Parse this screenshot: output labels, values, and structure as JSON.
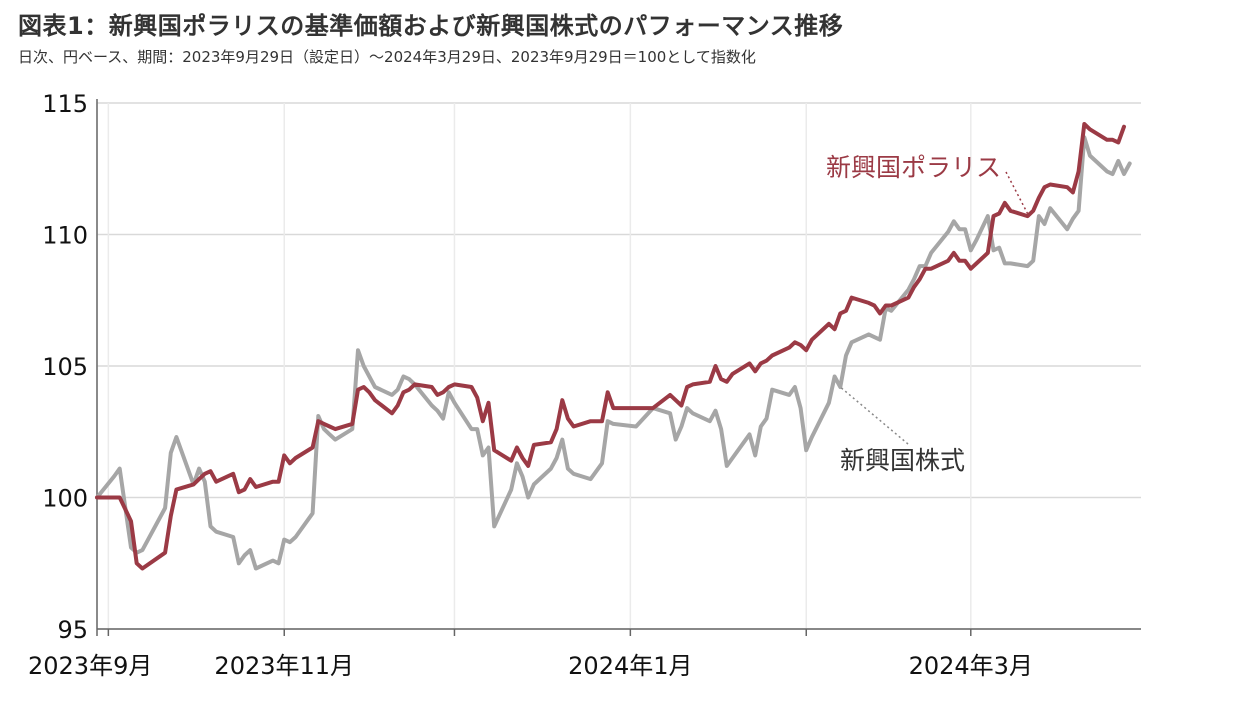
{
  "title": "図表1：新興国ポラリスの基準価額および新興国株式のパフォーマンス推移",
  "subtitle": "日次、円ベース、期間：2023年9月29日（設定日）～2024年3月29日、2023年9月29日＝100として指数化",
  "colors": {
    "polaris": "#9b3a45",
    "stocks": "#a6a6a6",
    "grid": "#d9d9d9",
    "axis": "#666666"
  },
  "chart_data": {
    "type": "line",
    "ylim": [
      95,
      115
    ],
    "y_ticks": [
      95,
      100,
      105,
      110,
      115
    ],
    "xlim": [
      "2023-09-29",
      "2024-03-31"
    ],
    "x_ticks": [
      {
        "date": "2023-09-29",
        "label": "2023年9月"
      },
      {
        "date": "2023-11-01",
        "label": "2023年11月"
      },
      {
        "date": "2024-01-01",
        "label": "2024年1月"
      },
      {
        "date": "2024-03-01",
        "label": "2024年3月"
      }
    ],
    "x_minor_ticks": [
      "2023-10-01",
      "2023-12-01",
      "2024-02-01"
    ],
    "grid": true,
    "series": [
      {
        "name": "新興国ポラリス",
        "key": "polaris",
        "points": [
          [
            "2023-09-29",
            100.0
          ],
          [
            "2023-10-02",
            100.0
          ],
          [
            "2023-10-03",
            100.0
          ],
          [
            "2023-10-05",
            99.1
          ],
          [
            "2023-10-06",
            97.5
          ],
          [
            "2023-10-07",
            97.3
          ],
          [
            "2023-10-11",
            97.9
          ],
          [
            "2023-10-12",
            99.3
          ],
          [
            "2023-10-13",
            100.3
          ],
          [
            "2023-10-16",
            100.5
          ],
          [
            "2023-10-17",
            100.7
          ],
          [
            "2023-10-18",
            100.9
          ],
          [
            "2023-10-19",
            101.0
          ],
          [
            "2023-10-20",
            100.6
          ],
          [
            "2023-10-23",
            100.9
          ],
          [
            "2023-10-24",
            100.2
          ],
          [
            "2023-10-25",
            100.3
          ],
          [
            "2023-10-26",
            100.7
          ],
          [
            "2023-10-27",
            100.4
          ],
          [
            "2023-10-30",
            100.6
          ],
          [
            "2023-10-31",
            100.6
          ],
          [
            "2023-11-01",
            101.6
          ],
          [
            "2023-11-02",
            101.3
          ],
          [
            "2023-11-03",
            101.5
          ],
          [
            "2023-11-06",
            101.9
          ],
          [
            "2023-11-07",
            102.9
          ],
          [
            "2023-11-08",
            102.8
          ],
          [
            "2023-11-09",
            102.7
          ],
          [
            "2023-11-10",
            102.6
          ],
          [
            "2023-11-13",
            102.8
          ],
          [
            "2023-11-14",
            104.1
          ],
          [
            "2023-11-15",
            104.2
          ],
          [
            "2023-11-16",
            104.0
          ],
          [
            "2023-11-17",
            103.7
          ],
          [
            "2023-11-20",
            103.2
          ],
          [
            "2023-11-21",
            103.5
          ],
          [
            "2023-11-22",
            104.0
          ],
          [
            "2023-11-23",
            104.1
          ],
          [
            "2023-11-24",
            104.3
          ],
          [
            "2023-11-27",
            104.2
          ],
          [
            "2023-11-28",
            103.9
          ],
          [
            "2023-11-29",
            104.0
          ],
          [
            "2023-11-30",
            104.2
          ],
          [
            "2023-12-01",
            104.3
          ],
          [
            "2023-12-04",
            104.2
          ],
          [
            "2023-12-05",
            103.8
          ],
          [
            "2023-12-06",
            102.9
          ],
          [
            "2023-12-07",
            103.6
          ],
          [
            "2023-12-08",
            101.8
          ],
          [
            "2023-12-11",
            101.4
          ],
          [
            "2023-12-12",
            101.9
          ],
          [
            "2023-12-13",
            101.5
          ],
          [
            "2023-12-14",
            101.2
          ],
          [
            "2023-12-15",
            102.0
          ],
          [
            "2023-12-18",
            102.1
          ],
          [
            "2023-12-19",
            102.6
          ],
          [
            "2023-12-20",
            103.7
          ],
          [
            "2023-12-21",
            103.0
          ],
          [
            "2023-12-22",
            102.7
          ],
          [
            "2023-12-25",
            102.9
          ],
          [
            "2023-12-27",
            102.9
          ],
          [
            "2023-12-28",
            104.0
          ],
          [
            "2023-12-29",
            103.4
          ],
          [
            "2024-01-02",
            103.4
          ],
          [
            "2024-01-05",
            103.4
          ],
          [
            "2024-01-08",
            103.9
          ],
          [
            "2024-01-09",
            103.7
          ],
          [
            "2024-01-10",
            103.5
          ],
          [
            "2024-01-11",
            104.2
          ],
          [
            "2024-01-12",
            104.3
          ],
          [
            "2024-01-15",
            104.4
          ],
          [
            "2024-01-16",
            105.0
          ],
          [
            "2024-01-17",
            104.5
          ],
          [
            "2024-01-18",
            104.4
          ],
          [
            "2024-01-19",
            104.7
          ],
          [
            "2024-01-22",
            105.1
          ],
          [
            "2024-01-23",
            104.8
          ],
          [
            "2024-01-24",
            105.1
          ],
          [
            "2024-01-25",
            105.2
          ],
          [
            "2024-01-26",
            105.4
          ],
          [
            "2024-01-29",
            105.7
          ],
          [
            "2024-01-30",
            105.9
          ],
          [
            "2024-01-31",
            105.8
          ],
          [
            "2024-02-01",
            105.6
          ],
          [
            "2024-02-02",
            106.0
          ],
          [
            "2024-02-05",
            106.6
          ],
          [
            "2024-02-06",
            106.4
          ],
          [
            "2024-02-07",
            107.0
          ],
          [
            "2024-02-08",
            107.1
          ],
          [
            "2024-02-09",
            107.6
          ],
          [
            "2024-02-12",
            107.4
          ],
          [
            "2024-02-13",
            107.3
          ],
          [
            "2024-02-14",
            107.0
          ],
          [
            "2024-02-15",
            107.3
          ],
          [
            "2024-02-16",
            107.3
          ],
          [
            "2024-02-19",
            107.6
          ],
          [
            "2024-02-20",
            108.0
          ],
          [
            "2024-02-21",
            108.3
          ],
          [
            "2024-02-22",
            108.7
          ],
          [
            "2024-02-23",
            108.7
          ],
          [
            "2024-02-26",
            109.0
          ],
          [
            "2024-02-27",
            109.3
          ],
          [
            "2024-02-28",
            109.0
          ],
          [
            "2024-02-29",
            109.0
          ],
          [
            "2024-03-01",
            108.7
          ],
          [
            "2024-03-02",
            108.9
          ],
          [
            "2024-03-04",
            109.3
          ],
          [
            "2024-03-05",
            110.7
          ],
          [
            "2024-03-06",
            110.8
          ],
          [
            "2024-03-07",
            111.2
          ],
          [
            "2024-03-08",
            110.9
          ],
          [
            "2024-03-11",
            110.7
          ],
          [
            "2024-03-12",
            110.9
          ],
          [
            "2024-03-13",
            111.4
          ],
          [
            "2024-03-14",
            111.8
          ],
          [
            "2024-03-15",
            111.9
          ],
          [
            "2024-03-18",
            111.8
          ],
          [
            "2024-03-19",
            111.6
          ],
          [
            "2024-03-20",
            112.4
          ],
          [
            "2024-03-21",
            114.2
          ],
          [
            "2024-03-22",
            114.0
          ],
          [
            "2024-03-25",
            113.6
          ],
          [
            "2024-03-26",
            113.6
          ],
          [
            "2024-03-27",
            113.5
          ],
          [
            "2024-03-28",
            114.1
          ]
        ]
      },
      {
        "name": "新興国株式",
        "key": "stocks",
        "points": [
          [
            "2023-09-29",
            100.0
          ],
          [
            "2023-10-02",
            100.8
          ],
          [
            "2023-10-03",
            101.1
          ],
          [
            "2023-10-05",
            98.1
          ],
          [
            "2023-10-06",
            97.9
          ],
          [
            "2023-10-07",
            98.0
          ],
          [
            "2023-10-11",
            99.6
          ],
          [
            "2023-10-12",
            101.7
          ],
          [
            "2023-10-13",
            102.3
          ],
          [
            "2023-10-16",
            100.5
          ],
          [
            "2023-10-17",
            101.1
          ],
          [
            "2023-10-18",
            100.6
          ],
          [
            "2023-10-19",
            98.9
          ],
          [
            "2023-10-20",
            98.7
          ],
          [
            "2023-10-23",
            98.5
          ],
          [
            "2023-10-24",
            97.5
          ],
          [
            "2023-10-25",
            97.8
          ],
          [
            "2023-10-26",
            98.0
          ],
          [
            "2023-10-27",
            97.3
          ],
          [
            "2023-10-30",
            97.6
          ],
          [
            "2023-10-31",
            97.5
          ],
          [
            "2023-11-01",
            98.4
          ],
          [
            "2023-11-02",
            98.3
          ],
          [
            "2023-11-03",
            98.5
          ],
          [
            "2023-11-06",
            99.4
          ],
          [
            "2023-11-07",
            103.1
          ],
          [
            "2023-11-08",
            102.6
          ],
          [
            "2023-11-09",
            102.4
          ],
          [
            "2023-11-10",
            102.2
          ],
          [
            "2023-11-13",
            102.6
          ],
          [
            "2023-11-14",
            105.6
          ],
          [
            "2023-11-15",
            105.0
          ],
          [
            "2023-11-16",
            104.6
          ],
          [
            "2023-11-17",
            104.2
          ],
          [
            "2023-11-20",
            103.9
          ],
          [
            "2023-11-21",
            104.1
          ],
          [
            "2023-11-22",
            104.6
          ],
          [
            "2023-11-23",
            104.5
          ],
          [
            "2023-11-24",
            104.3
          ],
          [
            "2023-11-27",
            103.5
          ],
          [
            "2023-11-28",
            103.3
          ],
          [
            "2023-11-29",
            103.0
          ],
          [
            "2023-11-30",
            104.0
          ],
          [
            "2023-12-01",
            103.6
          ],
          [
            "2023-12-04",
            102.6
          ],
          [
            "2023-12-05",
            102.6
          ],
          [
            "2023-12-06",
            101.6
          ],
          [
            "2023-12-07",
            101.9
          ],
          [
            "2023-12-08",
            98.9
          ],
          [
            "2023-12-11",
            100.3
          ],
          [
            "2023-12-12",
            101.3
          ],
          [
            "2023-12-13",
            100.8
          ],
          [
            "2023-12-14",
            100.0
          ],
          [
            "2023-12-15",
            100.5
          ],
          [
            "2023-12-18",
            101.1
          ],
          [
            "2023-12-19",
            101.5
          ],
          [
            "2023-12-20",
            102.2
          ],
          [
            "2023-12-21",
            101.1
          ],
          [
            "2023-12-22",
            100.9
          ],
          [
            "2023-12-25",
            100.7
          ],
          [
            "2023-12-27",
            101.3
          ],
          [
            "2023-12-28",
            102.9
          ],
          [
            "2023-12-29",
            102.8
          ],
          [
            "2024-01-02",
            102.7
          ],
          [
            "2024-01-05",
            103.4
          ],
          [
            "2024-01-08",
            103.2
          ],
          [
            "2024-01-09",
            102.2
          ],
          [
            "2024-01-10",
            102.7
          ],
          [
            "2024-01-11",
            103.4
          ],
          [
            "2024-01-12",
            103.2
          ],
          [
            "2024-01-15",
            102.9
          ],
          [
            "2024-01-16",
            103.3
          ],
          [
            "2024-01-17",
            102.6
          ],
          [
            "2024-01-18",
            101.2
          ],
          [
            "2024-01-19",
            101.5
          ],
          [
            "2024-01-22",
            102.4
          ],
          [
            "2024-01-23",
            101.6
          ],
          [
            "2024-01-24",
            102.7
          ],
          [
            "2024-01-25",
            103.0
          ],
          [
            "2024-01-26",
            104.1
          ],
          [
            "2024-01-29",
            103.9
          ],
          [
            "2024-01-30",
            104.2
          ],
          [
            "2024-01-31",
            103.4
          ],
          [
            "2024-02-01",
            101.8
          ],
          [
            "2024-02-02",
            102.3
          ],
          [
            "2024-02-05",
            103.6
          ],
          [
            "2024-02-06",
            104.6
          ],
          [
            "2024-02-07",
            104.2
          ],
          [
            "2024-02-08",
            105.4
          ],
          [
            "2024-02-09",
            105.9
          ],
          [
            "2024-02-12",
            106.2
          ],
          [
            "2024-02-13",
            106.1
          ],
          [
            "2024-02-14",
            106.0
          ],
          [
            "2024-02-15",
            107.2
          ],
          [
            "2024-02-16",
            107.1
          ],
          [
            "2024-02-19",
            107.9
          ],
          [
            "2024-02-20",
            108.3
          ],
          [
            "2024-02-21",
            108.8
          ],
          [
            "2024-02-22",
            108.8
          ],
          [
            "2024-02-23",
            109.3
          ],
          [
            "2024-02-26",
            110.1
          ],
          [
            "2024-02-27",
            110.5
          ],
          [
            "2024-02-28",
            110.2
          ],
          [
            "2024-02-29",
            110.2
          ],
          [
            "2024-03-01",
            109.4
          ],
          [
            "2024-03-02",
            109.8
          ],
          [
            "2024-03-04",
            110.7
          ],
          [
            "2024-03-05",
            109.4
          ],
          [
            "2024-03-06",
            109.5
          ],
          [
            "2024-03-07",
            108.9
          ],
          [
            "2024-03-08",
            108.9
          ],
          [
            "2024-03-11",
            108.8
          ],
          [
            "2024-03-12",
            109.0
          ],
          [
            "2024-03-13",
            110.7
          ],
          [
            "2024-03-14",
            110.4
          ],
          [
            "2024-03-15",
            111.0
          ],
          [
            "2024-03-18",
            110.2
          ],
          [
            "2024-03-19",
            110.6
          ],
          [
            "2024-03-20",
            110.9
          ],
          [
            "2024-03-21",
            113.7
          ],
          [
            "2024-03-22",
            113.0
          ],
          [
            "2024-03-25",
            112.4
          ],
          [
            "2024-03-26",
            112.3
          ],
          [
            "2024-03-27",
            112.8
          ],
          [
            "2024-03-28",
            112.3
          ],
          [
            "2024-03-29",
            112.7
          ]
        ]
      }
    ],
    "annotations": [
      {
        "text": "新興国ポラリス",
        "series": "polaris"
      },
      {
        "text": "新興国株式",
        "series": "stocks"
      }
    ]
  }
}
